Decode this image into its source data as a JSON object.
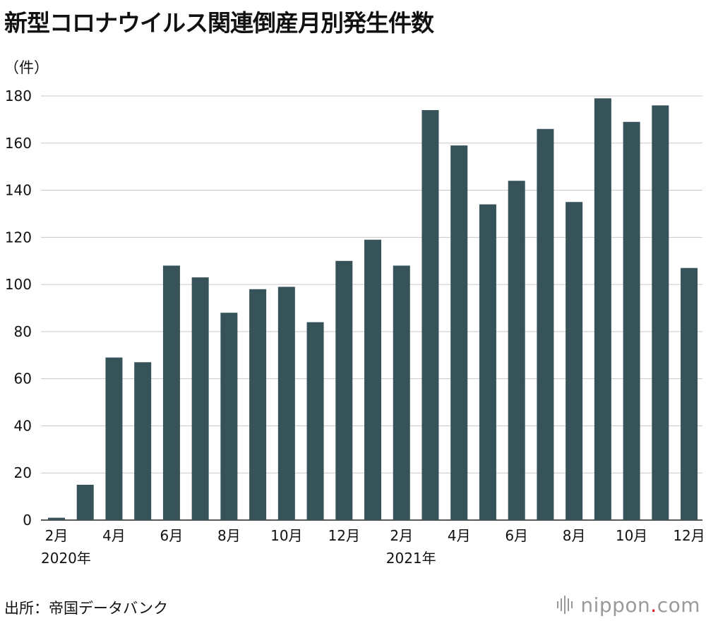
{
  "header": {
    "title": "新型コロナウイルス関連倒産月別発生件数",
    "unit_label": "（件）"
  },
  "footer": {
    "source": "出所：帝国データバンク",
    "logo_name": "nippon",
    "logo_dot": ".",
    "logo_tld": "com",
    "logo_icon": "sound-bars-icon"
  },
  "chart_data": {
    "type": "bar",
    "title": "新型コロナウイルス関連倒産月別発生件数",
    "ylabel": "（件）",
    "xlabel": "",
    "ylim": [
      0,
      180
    ],
    "yticks": [
      0,
      20,
      40,
      60,
      80,
      100,
      120,
      140,
      160,
      180
    ],
    "grid": true,
    "bar_color": "#37535a",
    "categories": [
      "2020-02",
      "2020-03",
      "2020-04",
      "2020-05",
      "2020-06",
      "2020-07",
      "2020-08",
      "2020-09",
      "2020-10",
      "2020-11",
      "2020-12",
      "2021-01",
      "2021-02",
      "2021-03",
      "2021-04",
      "2021-05",
      "2021-06",
      "2021-07",
      "2021-08",
      "2021-09",
      "2021-10",
      "2021-11",
      "2021-12"
    ],
    "values": [
      1,
      15,
      69,
      67,
      108,
      103,
      88,
      98,
      99,
      84,
      110,
      119,
      108,
      174,
      159,
      134,
      144,
      166,
      135,
      179,
      169,
      176,
      107
    ],
    "x_tick_labels": [
      {
        "index": 0,
        "label": "2月"
      },
      {
        "index": 2,
        "label": "4月"
      },
      {
        "index": 4,
        "label": "6月"
      },
      {
        "index": 6,
        "label": "8月"
      },
      {
        "index": 8,
        "label": "10月"
      },
      {
        "index": 10,
        "label": "12月"
      },
      {
        "index": 12,
        "label": "2月"
      },
      {
        "index": 14,
        "label": "4月"
      },
      {
        "index": 16,
        "label": "6月"
      },
      {
        "index": 18,
        "label": "8月"
      },
      {
        "index": 20,
        "label": "10月"
      },
      {
        "index": 22,
        "label": "12月"
      }
    ],
    "year_labels": [
      {
        "index": 0,
        "label": "2020年"
      },
      {
        "index": 12,
        "label": "2021年"
      }
    ]
  }
}
